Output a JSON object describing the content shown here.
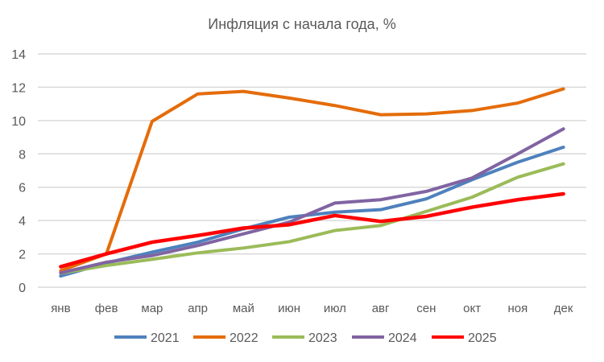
{
  "chart_data": {
    "type": "line",
    "title": "Инфляция с начала года, %",
    "xlabel": "",
    "ylabel": "",
    "ylim": [
      0,
      14
    ],
    "yticks": [
      0,
      2,
      4,
      6,
      8,
      10,
      12,
      14
    ],
    "grid": true,
    "legend": "bottom",
    "categories": [
      "янв",
      "фев",
      "мар",
      "апр",
      "май",
      "июн",
      "июл",
      "авг",
      "сен",
      "окт",
      "ноя",
      "дек"
    ],
    "series": [
      {
        "name": "2021",
        "color": "#4e81bd",
        "values": [
          0.67,
          1.45,
          2.1,
          2.7,
          3.5,
          4.2,
          4.5,
          4.65,
          5.3,
          6.45,
          7.5,
          8.4
        ]
      },
      {
        "name": "2022",
        "color": "#e46c0a",
        "values": [
          0.99,
          2.0,
          9.95,
          11.6,
          11.75,
          11.35,
          10.9,
          10.35,
          10.4,
          10.6,
          11.05,
          11.9
        ]
      },
      {
        "name": "2023",
        "color": "#9bbb59",
        "values": [
          0.84,
          1.3,
          1.67,
          2.06,
          2.35,
          2.73,
          3.4,
          3.7,
          4.55,
          5.4,
          6.6,
          7.4
        ]
      },
      {
        "name": "2024",
        "color": "#8064a2",
        "values": [
          0.86,
          1.5,
          1.9,
          2.5,
          3.2,
          3.9,
          5.05,
          5.25,
          5.75,
          6.55,
          8.0,
          9.5
        ]
      },
      {
        "name": "2025",
        "color": "#ff0000",
        "values": [
          1.23,
          2.0,
          2.7,
          3.1,
          3.55,
          3.75,
          4.3,
          3.95,
          4.25,
          4.8,
          5.25,
          5.6
        ]
      }
    ]
  }
}
